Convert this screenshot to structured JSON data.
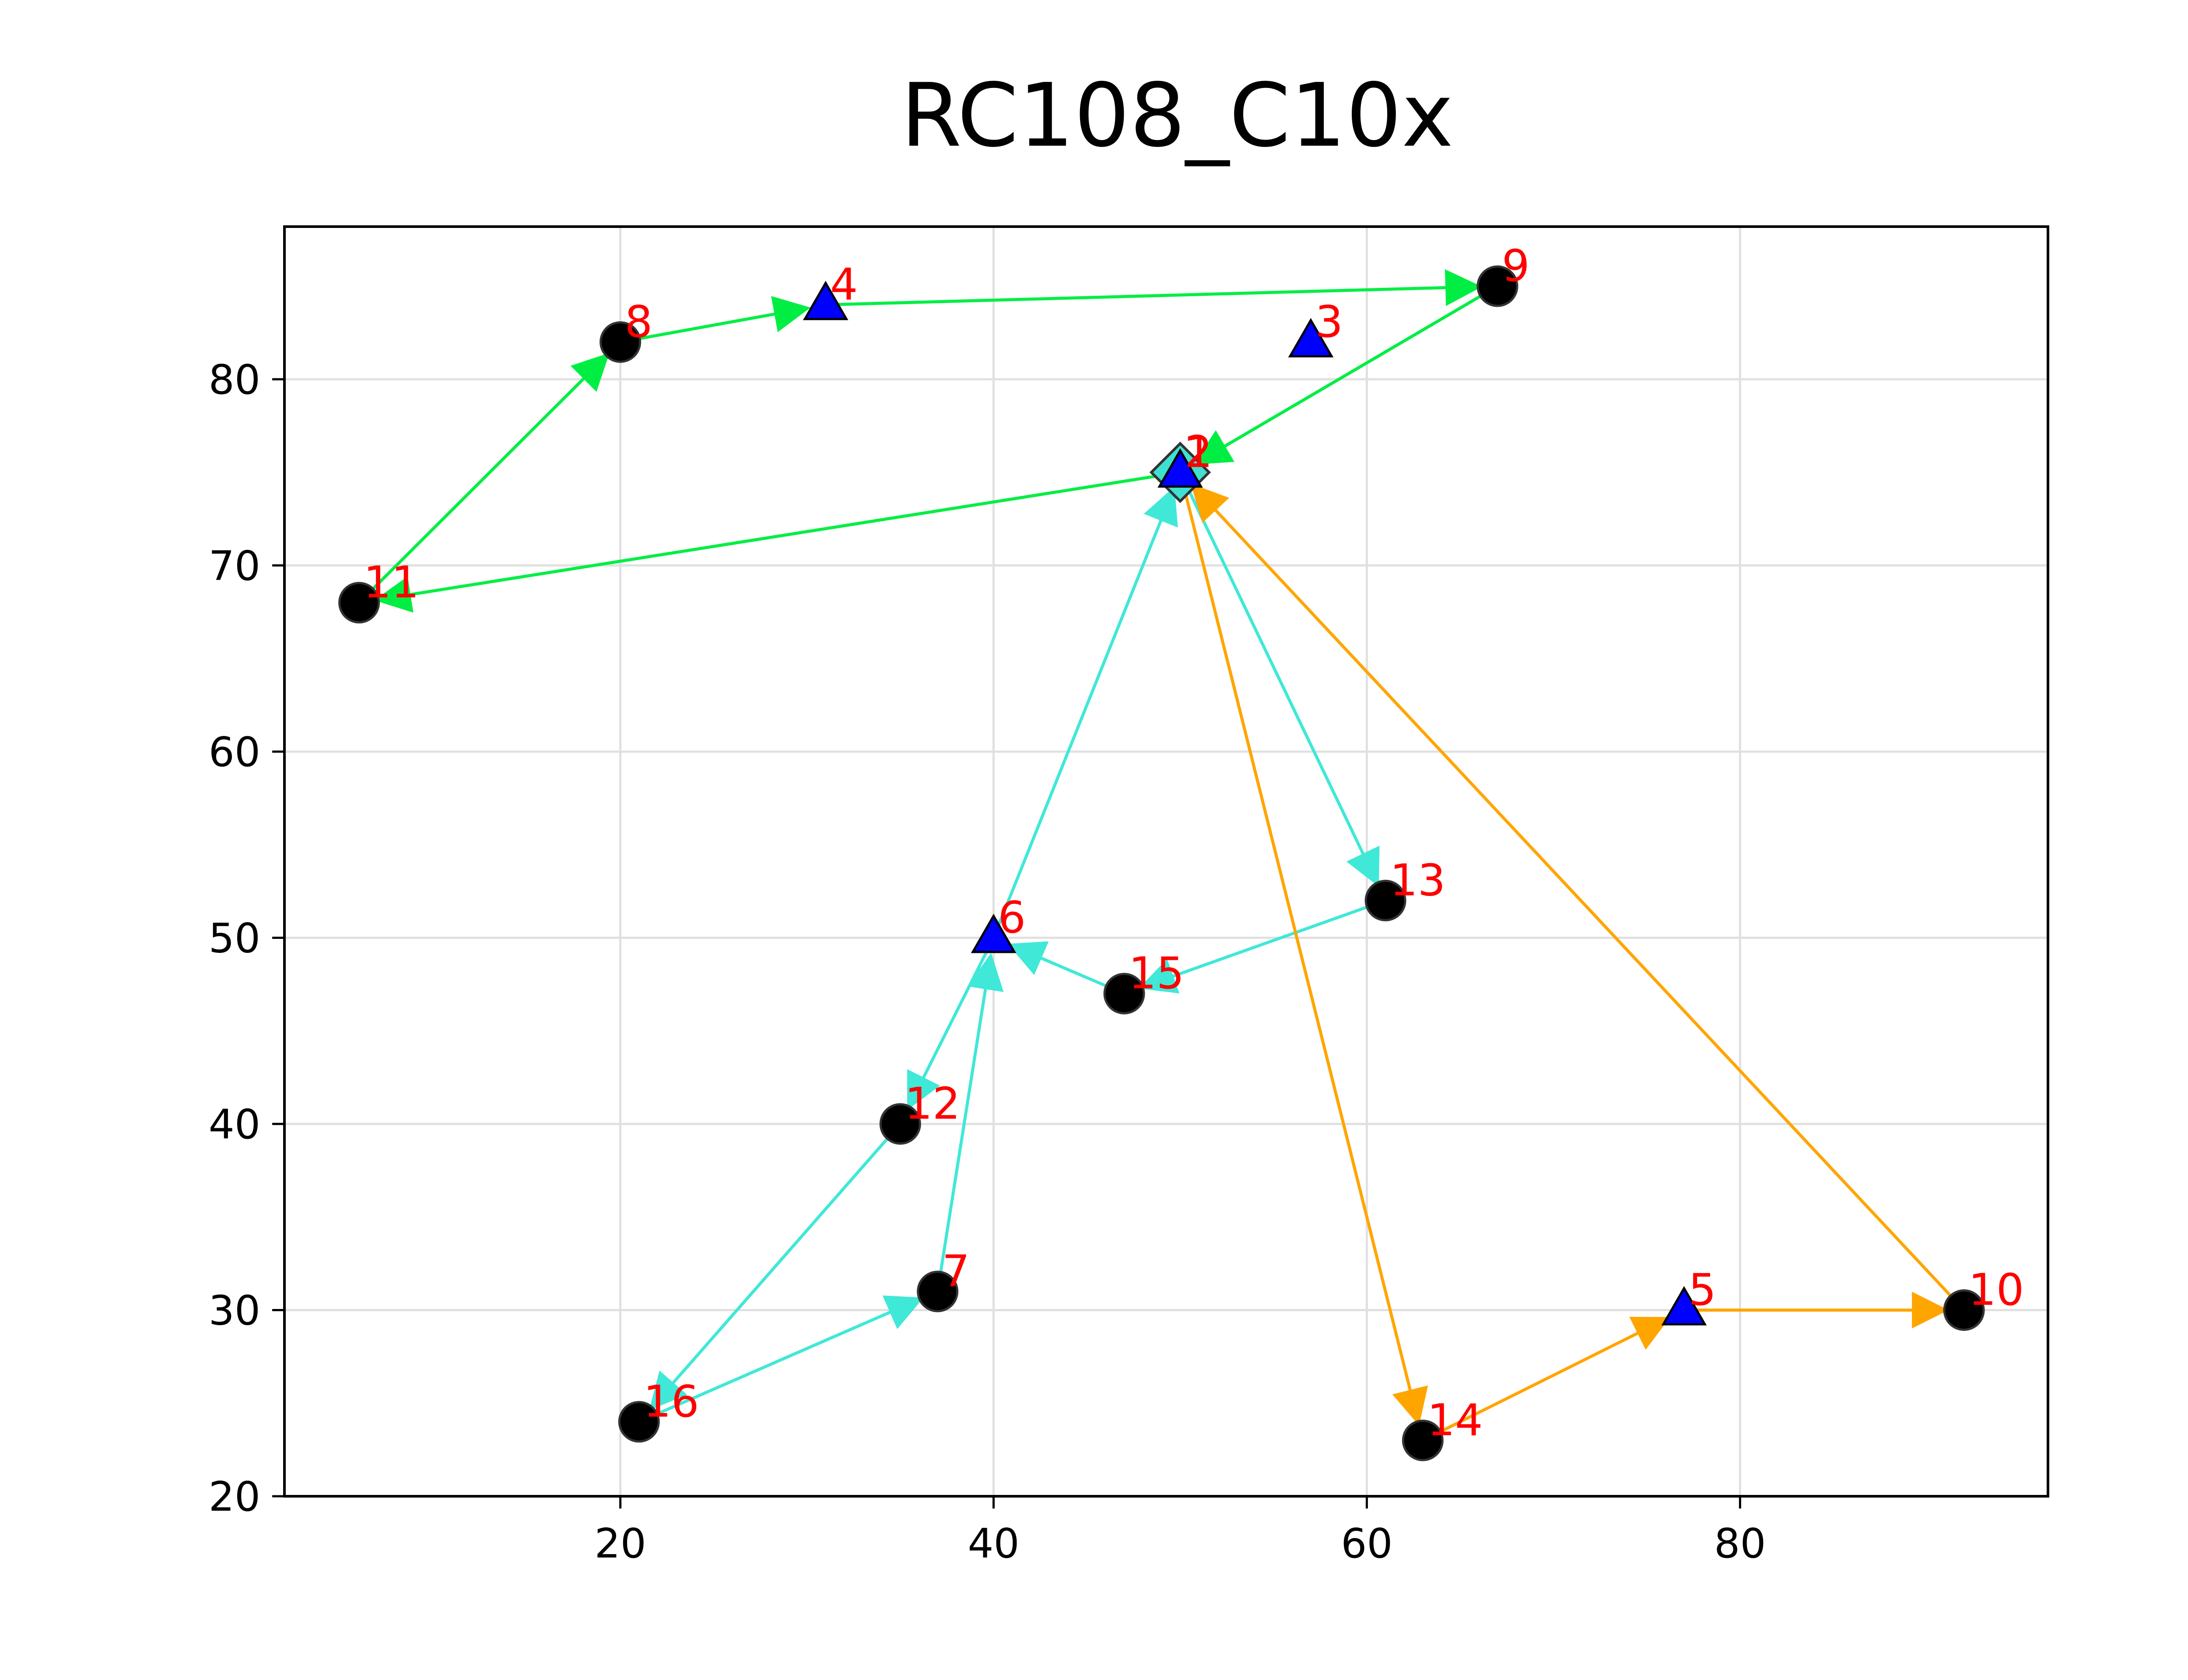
{
  "chart_data": {
    "type": "scatter",
    "title": "RC108_C10x",
    "xlabel": "",
    "ylabel": "",
    "xlim": [
      2,
      96.5
    ],
    "ylim": [
      20,
      88.2
    ],
    "xticks": [
      20,
      40,
      60,
      80
    ],
    "yticks": [
      20,
      30,
      40,
      50,
      60,
      70,
      80
    ],
    "grid": true,
    "legend": "none",
    "depot": {
      "id": "1",
      "x": 50,
      "y": 75,
      "marker": "diamond"
    },
    "stations": [
      {
        "id": "2",
        "x": 50,
        "y": 75
      },
      {
        "id": "3",
        "x": 57,
        "y": 82
      },
      {
        "id": "4",
        "x": 31,
        "y": 84
      },
      {
        "id": "5",
        "x": 77,
        "y": 30
      },
      {
        "id": "6",
        "x": 40,
        "y": 50
      }
    ],
    "customers": [
      {
        "id": "7",
        "x": 37,
        "y": 31
      },
      {
        "id": "8",
        "x": 20,
        "y": 82
      },
      {
        "id": "9",
        "x": 67,
        "y": 85
      },
      {
        "id": "10",
        "x": 92,
        "y": 30
      },
      {
        "id": "11",
        "x": 6,
        "y": 68
      },
      {
        "id": "12",
        "x": 35,
        "y": 40
      },
      {
        "id": "13",
        "x": 61,
        "y": 52
      },
      {
        "id": "14",
        "x": 63,
        "y": 23
      },
      {
        "id": "15",
        "x": 47,
        "y": 47
      },
      {
        "id": "16",
        "x": 21,
        "y": 24
      }
    ],
    "routes": [
      {
        "color": "#00ee44",
        "path": [
          "1",
          "11",
          "8",
          "4",
          "9",
          "1"
        ]
      },
      {
        "color": "#40e8d8",
        "path": [
          "1",
          "13",
          "15",
          "6",
          "12",
          "16",
          "7",
          "6",
          "1"
        ]
      },
      {
        "color": "#ffa500",
        "path": [
          "1",
          "14",
          "5",
          "10",
          "1"
        ]
      }
    ],
    "colors": {
      "customer_marker": "#000000",
      "station_marker": "#0000ff",
      "depot_marker": "#40e0d0",
      "node_label": "#ff0000",
      "grid": "#e0e0e0"
    }
  }
}
